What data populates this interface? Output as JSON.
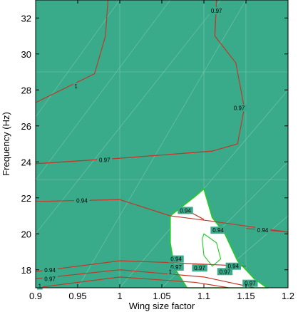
{
  "chart_data": {
    "type": "contour",
    "title": "",
    "xlabel": "Wing size factor",
    "ylabel": "Frequency (Hz)",
    "xlim": [
      0.9,
      1.2
    ],
    "ylim": [
      17,
      33
    ],
    "xticks": [
      0.9,
      0.95,
      1,
      1.05,
      1.1,
      1.15,
      1.2
    ],
    "xtick_labels": [
      "0.9",
      "0.95",
      "1",
      "1.05",
      "1.1",
      "1.15",
      "1.2"
    ],
    "yticks": [
      18,
      20,
      22,
      24,
      26,
      28,
      30,
      32
    ],
    "ytick_labels": [
      "18",
      "20",
      "22",
      "24",
      "26",
      "28",
      "30",
      "32"
    ],
    "grid": false,
    "colors": {
      "fill": "#3aab8a",
      "feasible_region": "#ffffff",
      "contour": "#c0392b",
      "region_outline": "#22cc22",
      "mesh": "#8fd2bd"
    },
    "contours": [
      {
        "level": "1",
        "label": "1",
        "points": [
          [
            0.9,
            27.3
          ],
          [
            0.97,
            28.9
          ],
          [
            0.983,
            31.0
          ],
          [
            0.986,
            33.0
          ]
        ],
        "label_at": [
          0.948,
          28.2
        ]
      },
      {
        "level": "0.97",
        "label": "0.97",
        "points": [
          [
            1.115,
            33.0
          ],
          [
            1.113,
            31.0
          ],
          [
            1.138,
            29.5
          ],
          [
            1.148,
            27.0
          ],
          [
            1.14,
            25.0
          ],
          [
            1.11,
            24.6
          ],
          [
            1.0,
            24.2
          ],
          [
            0.9,
            23.9
          ]
        ],
        "label_at": [
          1.142,
          27.0
        ]
      },
      {
        "level": "0.97",
        "label": "0.97",
        "points": [
          [
            1.115,
            33.0
          ],
          [
            1.113,
            31.0
          ]
        ],
        "label_at": [
          1.115,
          32.4
        ]
      },
      {
        "level": "0.97",
        "label": "0.97",
        "points": [
          [
            0.9,
            23.9
          ],
          [
            1.0,
            24.2
          ],
          [
            1.11,
            24.6
          ]
        ],
        "label_at": [
          0.982,
          24.1
        ]
      },
      {
        "level": "0.94",
        "label": "0.94",
        "points": [
          [
            0.9,
            21.8
          ],
          [
            1.0,
            21.9
          ],
          [
            1.06,
            21.0
          ],
          [
            1.11,
            20.7
          ],
          [
            1.2,
            20.1
          ]
        ],
        "label_at": [
          0.955,
          21.85
        ]
      },
      {
        "level": "0.94",
        "label": "0.94",
        "points": [
          [
            1.08,
            21.3
          ],
          [
            1.1,
            20.8
          ]
        ],
        "label_at": [
          1.078,
          21.3
        ]
      },
      {
        "level": "0.94",
        "label": "0.94",
        "points": [
          [
            1.15,
            20.3
          ],
          [
            1.2,
            20.1
          ]
        ],
        "label_at": [
          1.17,
          20.2
        ]
      },
      {
        "level": "0.94",
        "label": "0.94",
        "points": [
          [
            0.9,
            17.9
          ],
          [
            1.0,
            18.5
          ],
          [
            1.06,
            18.4
          ],
          [
            1.15,
            18.2
          ]
        ],
        "label_at": [
          0.917,
          18.0
        ]
      },
      {
        "level": "0.97",
        "label": "0.97",
        "points": [
          [
            0.9,
            17.5
          ],
          [
            1.0,
            18.0
          ],
          [
            1.1,
            17.6
          ],
          [
            1.16,
            17.0
          ]
        ],
        "label_at": [
          0.917,
          17.5
        ]
      },
      {
        "level": "1",
        "label": "1",
        "points": [
          [
            0.9,
            17.0
          ],
          [
            1.0,
            17.6
          ],
          [
            1.09,
            17.3
          ],
          [
            1.13,
            17.0
          ]
        ],
        "label_at": [
          0.905,
          17.1
        ]
      }
    ],
    "contour_labels": [
      "1",
      "0.97",
      "0.97",
      "0.94",
      "0.94",
      "0.94",
      "0.94",
      "0.97",
      "1",
      "0.94",
      "0.97",
      "0.97",
      "0.97",
      "0.94"
    ],
    "extra_labels": [
      {
        "text": "0.94",
        "at": [
          1.067,
          18.6
        ]
      },
      {
        "text": "0.97",
        "at": [
          1.067,
          18.15
        ]
      },
      {
        "text": "1",
        "at": [
          1.06,
          17.9
        ]
      },
      {
        "text": "0.97",
        "at": [
          1.095,
          18.1
        ]
      },
      {
        "text": "0.94",
        "at": [
          1.117,
          20.2
        ]
      },
      {
        "text": "0.97",
        "at": [
          1.125,
          17.9
        ]
      },
      {
        "text": "0.97",
        "at": [
          1.155,
          17.25
        ]
      },
      {
        "text": "0.94",
        "at": [
          1.135,
          18.2
        ]
      }
    ],
    "feasible_region": [
      [
        1.06,
        21.0
      ],
      [
        1.09,
        22.1
      ],
      [
        1.1,
        22.5
      ],
      [
        1.11,
        20.9
      ],
      [
        1.125,
        20.0
      ],
      [
        1.14,
        18.5
      ],
      [
        1.16,
        17.5
      ],
      [
        1.175,
        17.0
      ],
      [
        1.08,
        17.0
      ],
      [
        1.065,
        18.1
      ],
      [
        1.06,
        19.5
      ]
    ],
    "mesh_lines": [
      [
        [
          0.95,
          17.0
        ],
        [
          1.15,
          33.0
        ]
      ],
      [
        [
          0.9,
          20.0
        ],
        [
          1.12,
          33.0
        ]
      ],
      [
        [
          0.9,
          23.0
        ],
        [
          1.06,
          33.0
        ]
      ],
      [
        [
          0.9,
          26.5
        ],
        [
          1.0,
          33.0
        ]
      ],
      [
        [
          1.0,
          17.0
        ],
        [
          1.2,
          28.0
        ]
      ],
      [
        [
          1.05,
          17.0
        ],
        [
          1.2,
          24.0
        ]
      ],
      [
        [
          1.1,
          17.0
        ],
        [
          1.2,
          21.0
        ]
      ],
      [
        [
          1.0,
          17.0
        ],
        [
          1.0,
          33.0
        ]
      ],
      [
        [
          1.1,
          17.0
        ],
        [
          1.1,
          33.0
        ]
      ],
      [
        [
          1.15,
          17.0
        ],
        [
          1.15,
          33.0
        ]
      ],
      [
        [
          0.9,
          29.0
        ],
        [
          1.2,
          29.0
        ]
      ],
      [
        [
          0.9,
          23.0
        ],
        [
          1.2,
          23.0
        ]
      ]
    ]
  }
}
